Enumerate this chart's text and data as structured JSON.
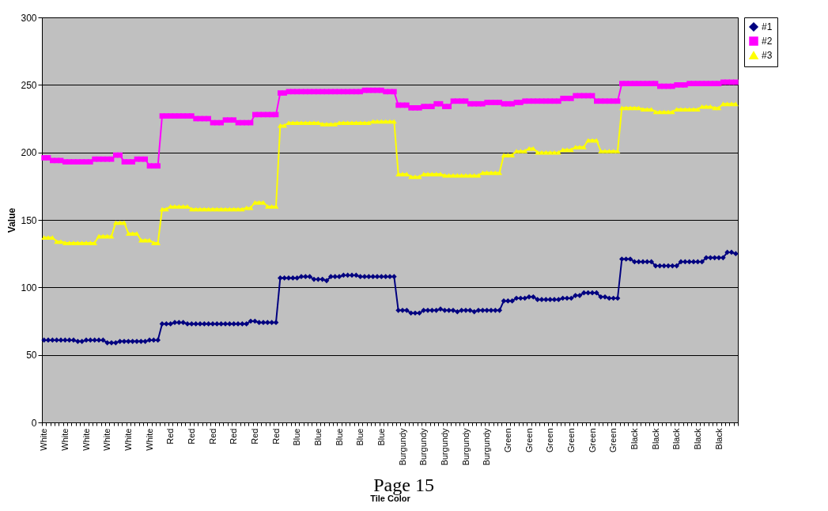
{
  "chart_data": {
    "type": "line",
    "xlabel": "Tile Color",
    "ylabel": "Value",
    "ylim": [
      0,
      300
    ],
    "yticks": [
      0,
      50,
      100,
      150,
      200,
      250,
      300
    ],
    "grid": "y",
    "legend": "right",
    "line_style": "solid",
    "annotations": [
      "Page 15"
    ],
    "categories": [
      "White",
      null,
      null,
      null,
      null,
      "White",
      null,
      null,
      null,
      null,
      "White",
      null,
      null,
      null,
      null,
      "White",
      null,
      null,
      null,
      null,
      "White",
      null,
      null,
      null,
      null,
      "White",
      null,
      null,
      null,
      null,
      "Red",
      null,
      null,
      null,
      null,
      "Red",
      null,
      null,
      null,
      null,
      "Red",
      null,
      null,
      null,
      null,
      "Red",
      null,
      null,
      null,
      null,
      "Red",
      null,
      null,
      null,
      null,
      "Red",
      null,
      null,
      null,
      null,
      "Blue",
      null,
      null,
      null,
      null,
      "Blue",
      null,
      null,
      null,
      null,
      "Blue",
      null,
      null,
      null,
      null,
      "Blue",
      null,
      null,
      null,
      null,
      "Blue",
      null,
      null,
      null,
      null,
      "Burgundy",
      null,
      null,
      null,
      null,
      "Burgundy",
      null,
      null,
      null,
      null,
      "Burgundy",
      null,
      null,
      null,
      null,
      "Burgundy",
      null,
      null,
      null,
      null,
      "Burgundy",
      null,
      null,
      null,
      null,
      "Green",
      null,
      null,
      null,
      null,
      "Green",
      null,
      null,
      null,
      null,
      "Green",
      null,
      null,
      null,
      null,
      "Green",
      null,
      null,
      null,
      null,
      "Green",
      null,
      null,
      null,
      null,
      "Green",
      null,
      null,
      null,
      null,
      "Black",
      null,
      null,
      null,
      null,
      "Black",
      null,
      null,
      null,
      null,
      "Black",
      null,
      null,
      null,
      null,
      "Black",
      null,
      null,
      null,
      null,
      "Black",
      null,
      null,
      null,
      null
    ],
    "series": [
      {
        "name": "#1",
        "color": "#000080",
        "marker": "diamond",
        "values": [
          61,
          61,
          61,
          61,
          61,
          61,
          61,
          61,
          60,
          60,
          61,
          61,
          61,
          61,
          61,
          59,
          59,
          59,
          60,
          60,
          60,
          60,
          60,
          60,
          60,
          61,
          61,
          61,
          73,
          73,
          73,
          74,
          74,
          74,
          73,
          73,
          73,
          73,
          73,
          73,
          73,
          73,
          73,
          73,
          73,
          73,
          73,
          73,
          73,
          75,
          75,
          74,
          74,
          74,
          74,
          74,
          107,
          107,
          107,
          107,
          107,
          108,
          108,
          108,
          106,
          106,
          106,
          105,
          108,
          108,
          108,
          109,
          109,
          109,
          109,
          108,
          108,
          108,
          108,
          108,
          108,
          108,
          108,
          108,
          83,
          83,
          83,
          81,
          81,
          81,
          83,
          83,
          83,
          83,
          84,
          83,
          83,
          83,
          82,
          83,
          83,
          83,
          82,
          83,
          83,
          83,
          83,
          83,
          83,
          90,
          90,
          90,
          92,
          92,
          92,
          93,
          93,
          91,
          91,
          91,
          91,
          91,
          91,
          92,
          92,
          92,
          94,
          94,
          96,
          96,
          96,
          96,
          93,
          93,
          92,
          92,
          92,
          121,
          121,
          121,
          119,
          119,
          119,
          119,
          119,
          116,
          116,
          116,
          116,
          116,
          116,
          119,
          119,
          119,
          119,
          119,
          119,
          122,
          122,
          122,
          122,
          122,
          126,
          126,
          125
        ]
      },
      {
        "name": "#2",
        "color": "#ff00ff",
        "marker": "square",
        "values": [
          196,
          196,
          194,
          194,
          194,
          193,
          193,
          193,
          193,
          193,
          193,
          193,
          195,
          195,
          195,
          195,
          195,
          198,
          198,
          193,
          193,
          193,
          195,
          195,
          195,
          190,
          190,
          190,
          227,
          227,
          227,
          227,
          227,
          227,
          227,
          227,
          225,
          225,
          225,
          225,
          222,
          222,
          222,
          224,
          224,
          224,
          222,
          222,
          222,
          222,
          228,
          228,
          228,
          228,
          228,
          228,
          244,
          244,
          245,
          245,
          245,
          245,
          245,
          245,
          245,
          245,
          245,
          245,
          245,
          245,
          245,
          245,
          245,
          245,
          245,
          245,
          246,
          246,
          246,
          246,
          246,
          245,
          245,
          245,
          235,
          235,
          235,
          233,
          233,
          233,
          234,
          234,
          234,
          236,
          236,
          234,
          234,
          238,
          238,
          238,
          238,
          236,
          236,
          236,
          236,
          237,
          237,
          237,
          237,
          236,
          236,
          236,
          237,
          237,
          238,
          238,
          238,
          238,
          238,
          238,
          238,
          238,
          238,
          240,
          240,
          240,
          242,
          242,
          242,
          242,
          242,
          238,
          238,
          238,
          238,
          238,
          238,
          251,
          251,
          251,
          251,
          251,
          251,
          251,
          251,
          251,
          249,
          249,
          249,
          249,
          250,
          250,
          250,
          251,
          251,
          251,
          251,
          251,
          251,
          251,
          251,
          252,
          252,
          252,
          252
        ]
      },
      {
        "name": "#3",
        "color": "#ffff00",
        "marker": "triangle",
        "values": [
          137,
          137,
          137,
          134,
          134,
          133,
          133,
          133,
          133,
          133,
          133,
          133,
          133,
          138,
          138,
          138,
          138,
          148,
          148,
          148,
          140,
          140,
          140,
          135,
          135,
          135,
          133,
          133,
          158,
          158,
          160,
          160,
          160,
          160,
          160,
          158,
          158,
          158,
          158,
          158,
          158,
          158,
          158,
          158,
          158,
          158,
          158,
          158,
          159,
          159,
          163,
          163,
          163,
          160,
          160,
          160,
          220,
          220,
          222,
          222,
          222,
          222,
          222,
          222,
          222,
          222,
          221,
          221,
          221,
          221,
          222,
          222,
          222,
          222,
          222,
          222,
          222,
          222,
          223,
          223,
          223,
          223,
          223,
          223,
          184,
          184,
          184,
          182,
          182,
          182,
          184,
          184,
          184,
          184,
          184,
          183,
          183,
          183,
          183,
          183,
          183,
          183,
          183,
          183,
          185,
          185,
          185,
          185,
          185,
          198,
          198,
          198,
          201,
          201,
          201,
          203,
          203,
          200,
          200,
          200,
          200,
          200,
          200,
          202,
          202,
          202,
          204,
          204,
          204,
          209,
          209,
          209,
          201,
          201,
          201,
          201,
          201,
          233,
          233,
          233,
          233,
          233,
          232,
          232,
          232,
          230,
          230,
          230,
          230,
          230,
          232,
          232,
          232,
          232,
          232,
          232,
          234,
          234,
          234,
          233,
          233,
          236,
          236,
          236,
          236
        ]
      }
    ]
  }
}
